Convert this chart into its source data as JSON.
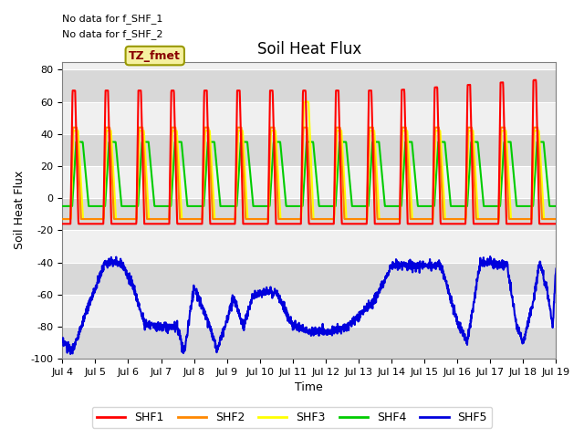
{
  "title": "Soil Heat Flux",
  "ylabel": "Soil Heat Flux",
  "xlabel": "Time",
  "ylim": [
    -100,
    85
  ],
  "yticks": [
    -100,
    -80,
    -60,
    -40,
    -20,
    0,
    20,
    40,
    60,
    80
  ],
  "xtick_labels": [
    "Jul 4",
    "Jul 5",
    "Jul 6",
    "Jul 7",
    "Jul 8",
    "Jul 9",
    "Jul 10",
    "Jul 11",
    "Jul 12",
    "Jul 13",
    "Jul 14",
    "Jul 15",
    "Jul 16",
    "Jul 17",
    "Jul 18",
    "Jul 19"
  ],
  "colors": {
    "SHF1": "#ff0000",
    "SHF2": "#ff8800",
    "SHF3": "#ffff00",
    "SHF4": "#00cc00",
    "SHF5": "#0000dd"
  },
  "annotation_line1": "No data for f_SHF_1",
  "annotation_line2": "No data for f_SHF_2",
  "tz_label": "TZ_fmet",
  "tz_facecolor": "#f5f0a0",
  "tz_edgecolor": "#999900",
  "tz_textcolor": "#880000",
  "bg_color": "#ffffff",
  "plot_bg_color": "#f0f0f0",
  "band_color": "#d8d8d8",
  "grid_color": "#ffffff",
  "linewidth": 1.5,
  "title_fontsize": 12,
  "axis_label_fontsize": 9,
  "tick_fontsize": 8,
  "legend_fontsize": 9,
  "annot_fontsize": 8
}
